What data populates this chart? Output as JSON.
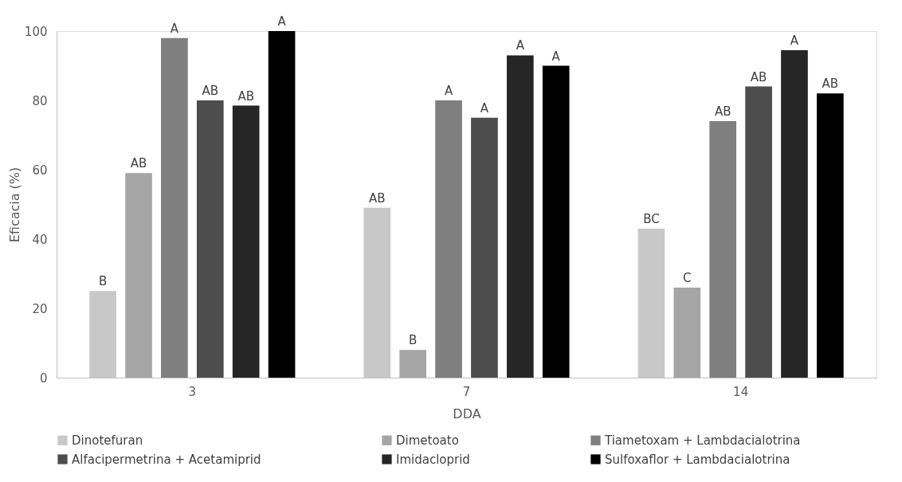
{
  "chart_data": {
    "type": "bar",
    "xlabel": "DDA",
    "ylabel": "Eficacia (%)",
    "categories": [
      "3",
      "7",
      "14"
    ],
    "ylim": [
      0,
      100
    ],
    "yticks": [
      0,
      20,
      40,
      60,
      80,
      100
    ],
    "grid": false,
    "legend": "bottom",
    "series": [
      {
        "name": "Dinotefuran",
        "color": "#c8c8c8",
        "values": [
          25,
          49,
          43
        ],
        "value_labels": [
          "B",
          "AB",
          "BC"
        ]
      },
      {
        "name": "Dimetoato",
        "color": "#a5a5a5",
        "values": [
          59,
          8,
          26
        ],
        "value_labels": [
          "AB",
          "B",
          "C"
        ]
      },
      {
        "name": "Tiametoxam + Lambdacialotrina",
        "color": "#7f7f7f",
        "values": [
          98,
          80,
          74
        ],
        "value_labels": [
          "A",
          "A",
          "AB"
        ]
      },
      {
        "name": "Alfacipermetrina + Acetamiprid",
        "color": "#4d4d4d",
        "values": [
          80,
          75,
          84
        ],
        "value_labels": [
          "AB",
          "A",
          "AB"
        ]
      },
      {
        "name": "Imidacloprid",
        "color": "#262626",
        "values": [
          78.5,
          93,
          94.5
        ],
        "value_labels": [
          "AB",
          "A",
          "A"
        ]
      },
      {
        "name": "Sulfoxaflor + Lambdacialotrina",
        "color": "#000000",
        "values": [
          100,
          90,
          82
        ],
        "value_labels": [
          "A",
          "A",
          "AB"
        ]
      }
    ]
  }
}
